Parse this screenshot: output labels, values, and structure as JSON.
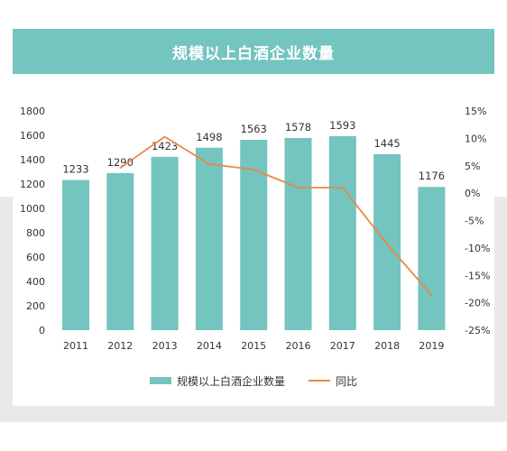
{
  "chart_data": {
    "type": "bar",
    "title": "规模以上白酒企业数量",
    "categories": [
      "2011",
      "2012",
      "2013",
      "2014",
      "2015",
      "2016",
      "2017",
      "2018",
      "2019"
    ],
    "series": [
      {
        "name": "规模以上白酒企业数量",
        "type": "bar",
        "axis": "left",
        "values": [
          1233,
          1290,
          1423,
          1498,
          1563,
          1578,
          1593,
          1445,
          1176
        ],
        "color": "#74c4bf"
      },
      {
        "name": "同比",
        "type": "line",
        "axis": "right",
        "values": [
          null,
          4.6,
          10.3,
          5.3,
          4.3,
          1.0,
          1.0,
          -9.3,
          -18.6
        ],
        "color": "#e88a43"
      }
    ],
    "ylim": [
      0,
      1800
    ],
    "y_ticks": [
      "0",
      "200",
      "400",
      "600",
      "800",
      "1000",
      "1200",
      "1400",
      "1600",
      "1800"
    ],
    "y2lim": [
      -25,
      15
    ],
    "y2_ticks": [
      "-25%",
      "-20%",
      "-15%",
      "-10%",
      "-5%",
      "0%",
      "5%",
      "10%",
      "15%"
    ],
    "data_labels": [
      "1233",
      "1290",
      "1423",
      "1498",
      "1563",
      "1578",
      "1593",
      "1445",
      "1176"
    ],
    "grid": false,
    "legend_position": "bottom"
  },
  "legend": {
    "bar_label": "规模以上白酒企业数量",
    "line_label": "同比"
  }
}
